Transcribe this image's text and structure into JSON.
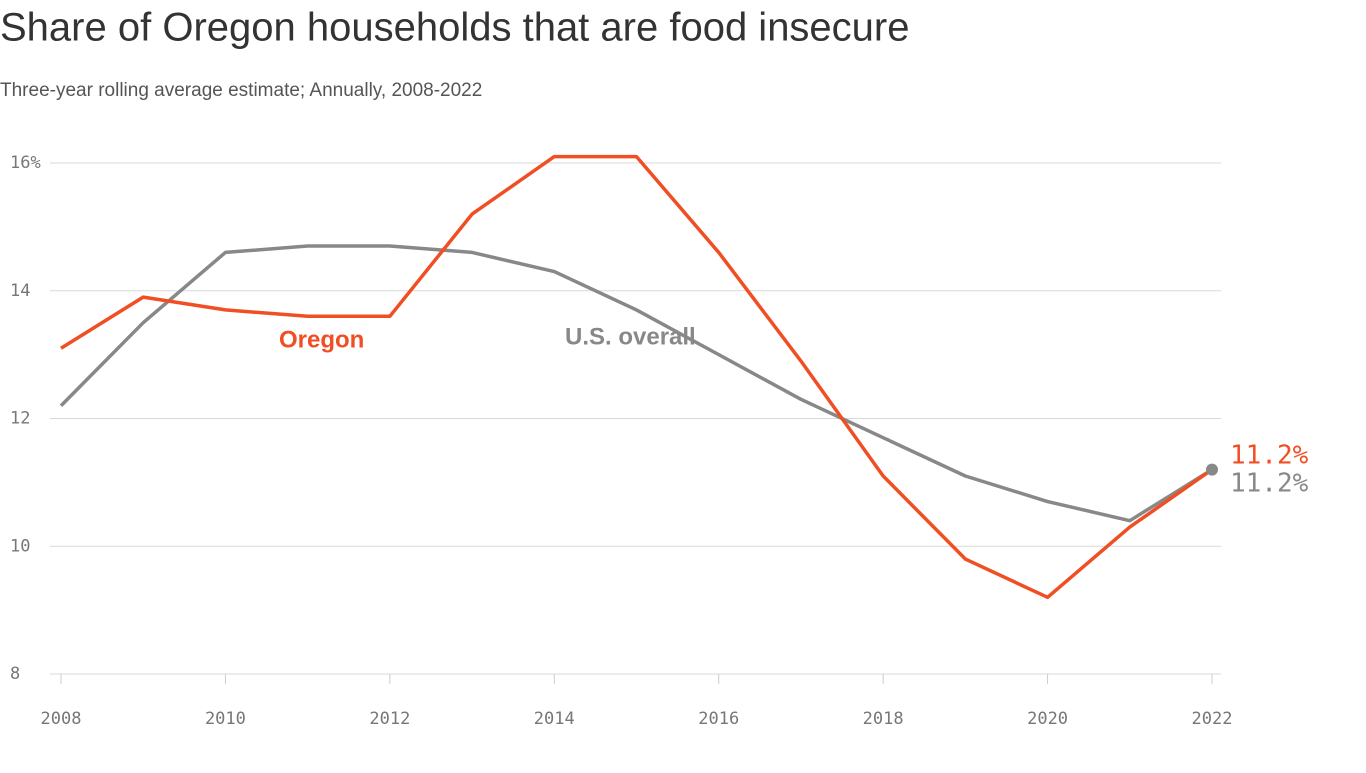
{
  "chart_data": {
    "type": "line",
    "title": "Share of Oregon households that are food insecure",
    "subtitle": "Three-year rolling average estimate; Annually, 2008-2022",
    "x": [
      2008,
      2009,
      2010,
      2011,
      2012,
      2013,
      2014,
      2015,
      2016,
      2017,
      2018,
      2019,
      2020,
      2021,
      2022
    ],
    "series": [
      {
        "name": "Oregon",
        "color": "#f04e23",
        "values": [
          13.1,
          13.9,
          13.7,
          13.6,
          13.6,
          15.2,
          16.1,
          16.1,
          14.6,
          12.9,
          11.1,
          9.8,
          9.2,
          10.3,
          11.2
        ],
        "end_label": "11.2%"
      },
      {
        "name": "U.S. overall",
        "color": "#888888",
        "values": [
          12.2,
          13.5,
          14.6,
          14.7,
          14.7,
          14.6,
          14.3,
          13.7,
          13.0,
          12.3,
          11.7,
          11.1,
          10.7,
          10.4,
          11.2
        ],
        "end_label": "11.2%"
      }
    ],
    "xlim": [
      2008,
      2022
    ],
    "xticks": [
      2008,
      2010,
      2012,
      2014,
      2016,
      2018,
      2020,
      2022
    ],
    "ylim": [
      8,
      16.2
    ],
    "yticks": [
      {
        "value": 16,
        "label": "16%"
      },
      14,
      12,
      10,
      8
    ],
    "grid": true
  }
}
